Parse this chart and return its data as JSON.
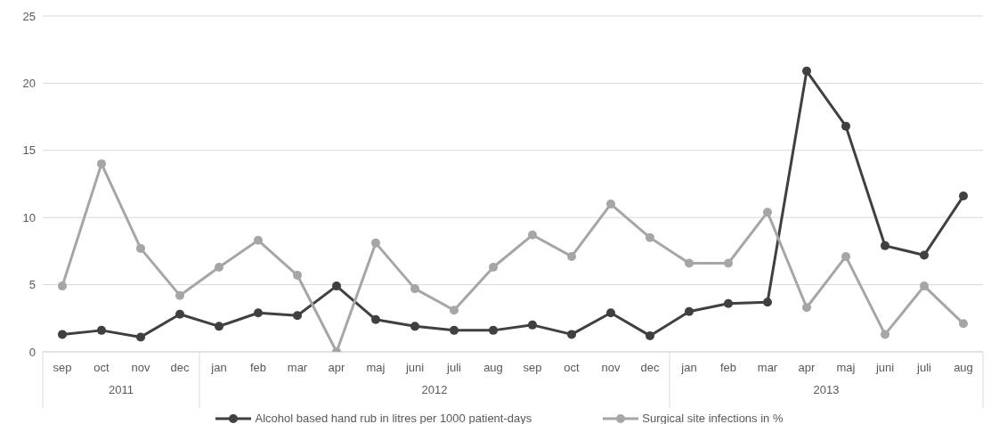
{
  "chart_data": {
    "type": "line",
    "categories": [
      "sep",
      "oct",
      "nov",
      "dec",
      "jan",
      "feb",
      "mar",
      "apr",
      "maj",
      "juni",
      "juli",
      "aug",
      "sep",
      "oct",
      "nov",
      "dec",
      "jan",
      "feb",
      "mar",
      "apr",
      "maj",
      "juni",
      "juli",
      "aug"
    ],
    "series": [
      {
        "name": "Alcohol based hand rub in litres per 1000 patient-days",
        "color": "#404040",
        "values": [
          1.3,
          1.6,
          1.1,
          2.8,
          1.9,
          2.9,
          2.7,
          4.9,
          2.4,
          1.9,
          1.6,
          1.6,
          2.0,
          1.3,
          2.9,
          1.2,
          3.0,
          3.6,
          3.7,
          20.9,
          16.8,
          7.9,
          7.2,
          11.6
        ]
      },
      {
        "name": "Surgical site infections in %",
        "color": "#a6a6a6",
        "values": [
          4.9,
          14.0,
          7.7,
          4.2,
          6.3,
          8.3,
          5.7,
          0,
          8.1,
          4.7,
          3.1,
          6.3,
          8.7,
          7.1,
          11.0,
          8.5,
          6.6,
          6.6,
          10.4,
          3.3,
          7.1,
          1.3,
          4.9,
          2.1
        ]
      }
    ],
    "ylim": [
      0,
      25
    ],
    "yticks": [
      0,
      5,
      10,
      15,
      20,
      25
    ],
    "grid": "y",
    "legend": "bottom",
    "marker": "circle",
    "line_style": "solid",
    "annotations": [
      "2011",
      "2012",
      "2013"
    ]
  }
}
